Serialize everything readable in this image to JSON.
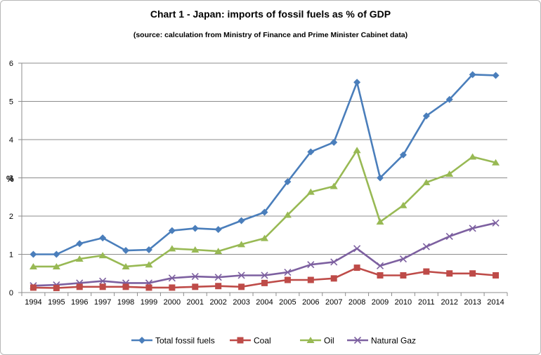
{
  "chart_data": {
    "type": "line",
    "title": "Chart 1 - Japan:  imports of fossil fuels as % of GDP",
    "subtitle": "(source: calculation from  Ministry of Finance and Prime Minister Cabinet data)",
    "xlabel": "",
    "ylabel": "%",
    "ylim": [
      0,
      6
    ],
    "yticks": [
      "0",
      "1",
      "2",
      "3",
      "4",
      "5",
      "6"
    ],
    "grid": true,
    "legend_position": "bottom",
    "categories": [
      "1994",
      "1995",
      "1996",
      "1997",
      "1998",
      "1999",
      "2000",
      "2001",
      "2002",
      "2003",
      "2004",
      "2005",
      "2006",
      "2007",
      "2008",
      "2009",
      "2010",
      "2011",
      "2012",
      "2013",
      "2014"
    ],
    "series": [
      {
        "name": "Total fossil fuels",
        "color": "#4a7ebb",
        "marker": "diamond",
        "values": [
          1.0,
          1.0,
          1.28,
          1.43,
          1.1,
          1.12,
          1.62,
          1.68,
          1.65,
          1.88,
          2.1,
          2.9,
          3.68,
          3.93,
          5.5,
          3.0,
          3.6,
          4.62,
          5.05,
          5.7,
          5.68
        ]
      },
      {
        "name": "Coal",
        "color": "#be4b48",
        "marker": "square",
        "values": [
          0.13,
          0.12,
          0.15,
          0.15,
          0.15,
          0.13,
          0.13,
          0.15,
          0.17,
          0.15,
          0.25,
          0.33,
          0.33,
          0.37,
          0.65,
          0.45,
          0.45,
          0.55,
          0.5,
          0.5,
          0.45
        ]
      },
      {
        "name": "Oil",
        "color": "#98b954",
        "marker": "triangle",
        "values": [
          0.68,
          0.68,
          0.88,
          0.97,
          0.68,
          0.73,
          1.15,
          1.12,
          1.08,
          1.26,
          1.42,
          2.03,
          2.63,
          2.78,
          3.72,
          1.85,
          2.28,
          2.88,
          3.1,
          3.55,
          3.4
        ]
      },
      {
        "name": "Natural Gaz",
        "color": "#7d60a0",
        "marker": "x",
        "values": [
          0.18,
          0.2,
          0.25,
          0.3,
          0.25,
          0.25,
          0.38,
          0.42,
          0.4,
          0.45,
          0.45,
          0.53,
          0.73,
          0.8,
          1.15,
          0.7,
          0.88,
          1.2,
          1.47,
          1.68,
          1.82
        ]
      }
    ]
  }
}
